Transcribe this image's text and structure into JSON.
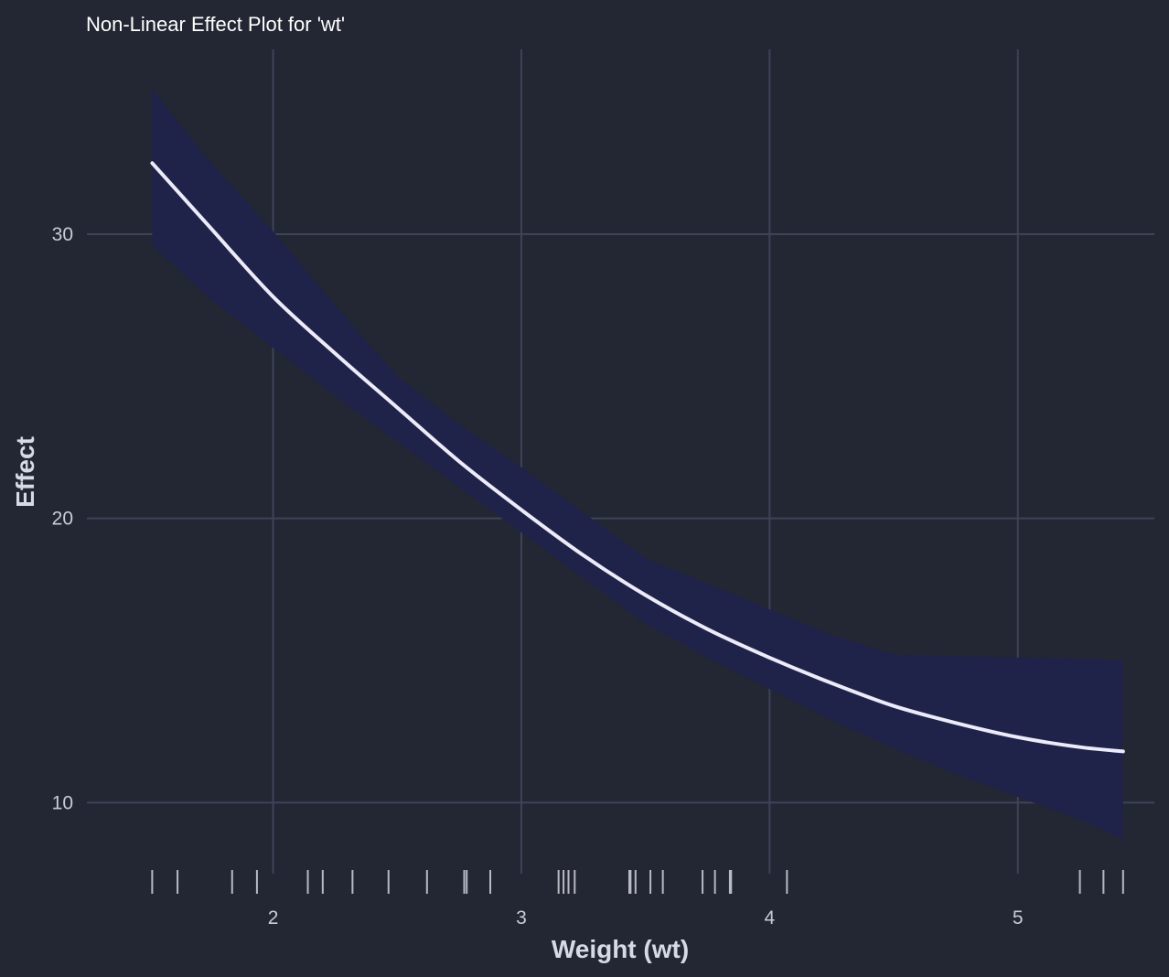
{
  "chart_data": {
    "type": "line",
    "title": "Non-Linear Effect Plot for 'wt'",
    "xlabel": "Weight (wt)",
    "ylabel": "Effect",
    "xlim": [
      1.25,
      5.55
    ],
    "ylim": [
      7.5,
      36.5
    ],
    "x_ticks": [
      2,
      3,
      4,
      5
    ],
    "y_ticks": [
      10,
      20,
      30
    ],
    "grid": true,
    "legend": "none",
    "colors": {
      "background": "#232733",
      "grid": "#3e4358",
      "band": "#1f2249",
      "line": "#ecebfa",
      "rug": "#b8b9c2"
    },
    "series": [
      {
        "values_x": [
          1.513,
          1.75,
          2.0,
          2.25,
          2.5,
          2.75,
          3.0,
          3.25,
          3.5,
          3.75,
          4.0,
          4.25,
          4.5,
          4.75,
          5.0,
          5.25,
          5.424
        ],
        "fit": [
          32.5,
          30.2,
          27.8,
          25.8,
          23.9,
          22.0,
          20.3,
          18.7,
          17.3,
          16.1,
          15.1,
          14.2,
          13.4,
          12.8,
          12.3,
          11.95,
          11.8
        ],
        "lower": [
          29.6,
          27.7,
          26.0,
          24.3,
          22.7,
          21.1,
          19.5,
          17.9,
          16.3,
          15.1,
          14.0,
          12.9,
          11.9,
          11.0,
          10.2,
          9.4,
          8.7
        ],
        "upper": [
          35.1,
          32.5,
          30.1,
          27.5,
          25.0,
          23.3,
          21.8,
          20.2,
          18.6,
          17.7,
          16.8,
          15.9,
          15.2,
          15.15,
          15.1,
          15.05,
          15.0
        ]
      }
    ],
    "rug_x": [
      1.513,
      1.615,
      1.835,
      1.935,
      2.14,
      2.2,
      2.32,
      2.465,
      2.62,
      2.77,
      2.78,
      2.875,
      3.15,
      3.17,
      3.19,
      3.215,
      3.435,
      3.44,
      3.46,
      3.52,
      3.57,
      3.73,
      3.78,
      3.84,
      3.845,
      4.07,
      5.25,
      5.345,
      5.424
    ]
  }
}
